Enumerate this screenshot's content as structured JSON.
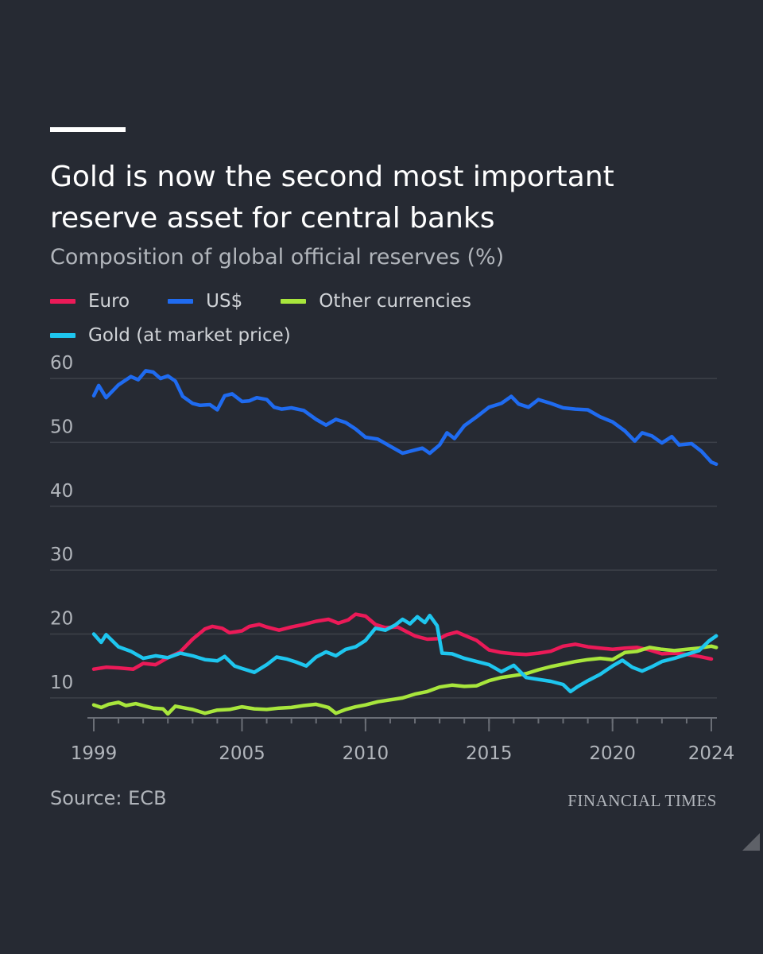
{
  "header": {
    "title": "Gold is now the second most important reserve asset for central banks",
    "subtitle": "Composition of global official reserves (%)"
  },
  "footer": {
    "source": "Source: ECB",
    "brand": "FINANCIAL TIMES"
  },
  "colors": {
    "background": "#262a33",
    "grid": "#3d414a",
    "axis_text": "#b1b5bb",
    "euro": "#eb1a58",
    "usd": "#1f6bf0",
    "other": "#a8e63c",
    "gold": "#1ec6ef"
  },
  "legend": {
    "euro": "Euro",
    "usd": "US$",
    "other": "Other currencies",
    "gold": "Gold (at market price)"
  },
  "chart_data": {
    "type": "line",
    "title": "Gold is now the second most important reserve asset for central banks",
    "subtitle": "Composition of global official reserves (%)",
    "xlabel": "",
    "ylabel": "",
    "xlim": [
      1999,
      2024
    ],
    "ylim": [
      7,
      62
    ],
    "yticks": [
      10,
      20,
      30,
      40,
      50,
      60
    ],
    "xticks": [
      1999,
      2005,
      2010,
      2015,
      2020,
      2024
    ],
    "grid": true,
    "legend_position": "top-left",
    "series": [
      {
        "name": "Euro",
        "color": "#eb1a58",
        "points": [
          [
            1999,
            14.5
          ],
          [
            1999.5,
            14.8
          ],
          [
            2000,
            14.7
          ],
          [
            2000.6,
            14.5
          ],
          [
            2001,
            15.4
          ],
          [
            2001.5,
            15.2
          ],
          [
            2002,
            16.3
          ],
          [
            2002.5,
            17.2
          ],
          [
            2003,
            19.2
          ],
          [
            2003.5,
            20.8
          ],
          [
            2003.8,
            21.2
          ],
          [
            2004.2,
            20.9
          ],
          [
            2004.5,
            20.2
          ],
          [
            2005,
            20.5
          ],
          [
            2005.3,
            21.2
          ],
          [
            2005.7,
            21.5
          ],
          [
            2006,
            21.1
          ],
          [
            2006.5,
            20.6
          ],
          [
            2007,
            21.1
          ],
          [
            2007.5,
            21.5
          ],
          [
            2008,
            22.0
          ],
          [
            2008.5,
            22.3
          ],
          [
            2008.9,
            21.7
          ],
          [
            2009.3,
            22.2
          ],
          [
            2009.6,
            23.1
          ],
          [
            2010,
            22.8
          ],
          [
            2010.4,
            21.5
          ],
          [
            2010.8,
            21.0
          ],
          [
            2011.3,
            21.1
          ],
          [
            2011.7,
            20.3
          ],
          [
            2012,
            19.7
          ],
          [
            2012.5,
            19.2
          ],
          [
            2013,
            19.3
          ],
          [
            2013.3,
            19.9
          ],
          [
            2013.7,
            20.3
          ],
          [
            2014,
            19.8
          ],
          [
            2014.5,
            19.0
          ],
          [
            2015,
            17.5
          ],
          [
            2015.5,
            17.1
          ],
          [
            2016,
            16.9
          ],
          [
            2016.5,
            16.8
          ],
          [
            2017,
            17.0
          ],
          [
            2017.5,
            17.3
          ],
          [
            2018,
            18.1
          ],
          [
            2018.5,
            18.4
          ],
          [
            2019,
            18.0
          ],
          [
            2019.5,
            17.8
          ],
          [
            2020,
            17.6
          ],
          [
            2020.5,
            17.8
          ],
          [
            2021,
            17.9
          ],
          [
            2021.5,
            17.5
          ],
          [
            2022,
            16.9
          ],
          [
            2022.5,
            17.0
          ],
          [
            2023,
            16.8
          ],
          [
            2023.5,
            16.5
          ],
          [
            2024,
            16.1
          ]
        ]
      },
      {
        "name": "US$",
        "color": "#1f6bf0",
        "points": [
          [
            1999,
            57.3
          ],
          [
            1999.2,
            58.9
          ],
          [
            1999.5,
            57.0
          ],
          [
            2000,
            59.0
          ],
          [
            2000.5,
            60.3
          ],
          [
            2000.8,
            59.8
          ],
          [
            2001.1,
            61.2
          ],
          [
            2001.4,
            61.0
          ],
          [
            2001.7,
            60.0
          ],
          [
            2002,
            60.4
          ],
          [
            2002.3,
            59.6
          ],
          [
            2002.6,
            57.2
          ],
          [
            2003,
            56.1
          ],
          [
            2003.3,
            55.8
          ],
          [
            2003.7,
            55.9
          ],
          [
            2004,
            55.1
          ],
          [
            2004.3,
            57.3
          ],
          [
            2004.6,
            57.6
          ],
          [
            2005,
            56.4
          ],
          [
            2005.3,
            56.5
          ],
          [
            2005.6,
            57.0
          ],
          [
            2006,
            56.7
          ],
          [
            2006.3,
            55.5
          ],
          [
            2006.6,
            55.2
          ],
          [
            2007,
            55.4
          ],
          [
            2007.5,
            55.0
          ],
          [
            2008,
            53.6
          ],
          [
            2008.4,
            52.7
          ],
          [
            2008.8,
            53.6
          ],
          [
            2009.2,
            53.1
          ],
          [
            2009.6,
            52.1
          ],
          [
            2010,
            50.8
          ],
          [
            2010.5,
            50.5
          ],
          [
            2011,
            49.4
          ],
          [
            2011.5,
            48.3
          ],
          [
            2012,
            48.8
          ],
          [
            2012.3,
            49.1
          ],
          [
            2012.6,
            48.3
          ],
          [
            2013,
            49.6
          ],
          [
            2013.3,
            51.5
          ],
          [
            2013.6,
            50.6
          ],
          [
            2014,
            52.6
          ],
          [
            2014.5,
            54.0
          ],
          [
            2015,
            55.5
          ],
          [
            2015.5,
            56.1
          ],
          [
            2015.9,
            57.2
          ],
          [
            2016.2,
            56.0
          ],
          [
            2016.6,
            55.5
          ],
          [
            2017,
            56.7
          ],
          [
            2017.5,
            56.1
          ],
          [
            2018,
            55.4
          ],
          [
            2018.5,
            55.2
          ],
          [
            2019,
            55.1
          ],
          [
            2019.5,
            54.0
          ],
          [
            2020,
            53.2
          ],
          [
            2020.5,
            51.8
          ],
          [
            2020.9,
            50.2
          ],
          [
            2021.2,
            51.5
          ],
          [
            2021.6,
            51.0
          ],
          [
            2022,
            49.9
          ],
          [
            2022.4,
            50.9
          ],
          [
            2022.7,
            49.6
          ],
          [
            2023.2,
            49.8
          ],
          [
            2023.6,
            48.6
          ],
          [
            2024,
            46.9
          ],
          [
            2024.2,
            46.6
          ]
        ]
      },
      {
        "name": "Other currencies",
        "color": "#a8e63c",
        "points": [
          [
            1999,
            8.9
          ],
          [
            1999.3,
            8.5
          ],
          [
            1999.6,
            9.0
          ],
          [
            2000,
            9.3
          ],
          [
            2000.3,
            8.8
          ],
          [
            2000.7,
            9.1
          ],
          [
            2001,
            8.8
          ],
          [
            2001.4,
            8.4
          ],
          [
            2001.8,
            8.3
          ],
          [
            2002,
            7.5
          ],
          [
            2002.3,
            8.7
          ],
          [
            2002.7,
            8.4
          ],
          [
            2003,
            8.2
          ],
          [
            2003.5,
            7.6
          ],
          [
            2004,
            8.1
          ],
          [
            2004.5,
            8.2
          ],
          [
            2005,
            8.6
          ],
          [
            2005.5,
            8.3
          ],
          [
            2006,
            8.2
          ],
          [
            2006.5,
            8.4
          ],
          [
            2007,
            8.5
          ],
          [
            2007.5,
            8.8
          ],
          [
            2008,
            9.0
          ],
          [
            2008.5,
            8.5
          ],
          [
            2008.8,
            7.6
          ],
          [
            2009.2,
            8.2
          ],
          [
            2009.6,
            8.6
          ],
          [
            2010,
            8.9
          ],
          [
            2010.5,
            9.4
          ],
          [
            2011,
            9.7
          ],
          [
            2011.5,
            10.0
          ],
          [
            2012,
            10.6
          ],
          [
            2012.5,
            11.0
          ],
          [
            2013,
            11.7
          ],
          [
            2013.5,
            12.0
          ],
          [
            2014,
            11.8
          ],
          [
            2014.5,
            11.9
          ],
          [
            2015,
            12.7
          ],
          [
            2015.5,
            13.2
          ],
          [
            2016,
            13.5
          ],
          [
            2016.5,
            13.8
          ],
          [
            2017,
            14.4
          ],
          [
            2017.5,
            14.9
          ],
          [
            2018,
            15.3
          ],
          [
            2018.5,
            15.7
          ],
          [
            2019,
            16.0
          ],
          [
            2019.5,
            16.2
          ],
          [
            2020,
            16.0
          ],
          [
            2020.5,
            17.1
          ],
          [
            2021,
            17.3
          ],
          [
            2021.5,
            17.9
          ],
          [
            2022,
            17.6
          ],
          [
            2022.5,
            17.4
          ],
          [
            2023,
            17.6
          ],
          [
            2023.5,
            17.8
          ],
          [
            2024,
            18.1
          ],
          [
            2024.2,
            17.9
          ]
        ]
      },
      {
        "name": "Gold (at market price)",
        "color": "#1ec6ef",
        "points": [
          [
            1999,
            20.0
          ],
          [
            1999.3,
            18.7
          ],
          [
            1999.5,
            19.9
          ],
          [
            2000,
            18.0
          ],
          [
            2000.5,
            17.3
          ],
          [
            2001,
            16.2
          ],
          [
            2001.5,
            16.6
          ],
          [
            2002,
            16.3
          ],
          [
            2002.5,
            17.0
          ],
          [
            2003,
            16.6
          ],
          [
            2003.5,
            16.0
          ],
          [
            2004,
            15.8
          ],
          [
            2004.3,
            16.5
          ],
          [
            2004.7,
            15.0
          ],
          [
            2005,
            14.6
          ],
          [
            2005.5,
            14.0
          ],
          [
            2006,
            15.2
          ],
          [
            2006.4,
            16.4
          ],
          [
            2006.8,
            16.1
          ],
          [
            2007.2,
            15.6
          ],
          [
            2007.6,
            15.0
          ],
          [
            2008,
            16.4
          ],
          [
            2008.4,
            17.2
          ],
          [
            2008.8,
            16.6
          ],
          [
            2009.2,
            17.6
          ],
          [
            2009.6,
            18.0
          ],
          [
            2010,
            19.0
          ],
          [
            2010.4,
            20.9
          ],
          [
            2010.8,
            20.6
          ],
          [
            2011.2,
            21.4
          ],
          [
            2011.5,
            22.3
          ],
          [
            2011.8,
            21.6
          ],
          [
            2012.1,
            22.7
          ],
          [
            2012.4,
            21.8
          ],
          [
            2012.6,
            22.9
          ],
          [
            2012.9,
            21.3
          ],
          [
            2013.1,
            17.0
          ],
          [
            2013.5,
            16.9
          ],
          [
            2014,
            16.2
          ],
          [
            2014.5,
            15.7
          ],
          [
            2015,
            15.2
          ],
          [
            2015.5,
            14.1
          ],
          [
            2016,
            15.1
          ],
          [
            2016.5,
            13.2
          ],
          [
            2017,
            12.9
          ],
          [
            2017.5,
            12.6
          ],
          [
            2018,
            12.1
          ],
          [
            2018.3,
            11.0
          ],
          [
            2018.6,
            11.8
          ],
          [
            2019,
            12.7
          ],
          [
            2019.5,
            13.7
          ],
          [
            2020,
            15.0
          ],
          [
            2020.4,
            15.9
          ],
          [
            2020.8,
            14.8
          ],
          [
            2021.2,
            14.2
          ],
          [
            2021.6,
            14.9
          ],
          [
            2022,
            15.7
          ],
          [
            2022.5,
            16.2
          ],
          [
            2023,
            16.8
          ],
          [
            2023.5,
            17.4
          ],
          [
            2023.9,
            18.9
          ],
          [
            2024.2,
            19.7
          ]
        ]
      }
    ]
  }
}
